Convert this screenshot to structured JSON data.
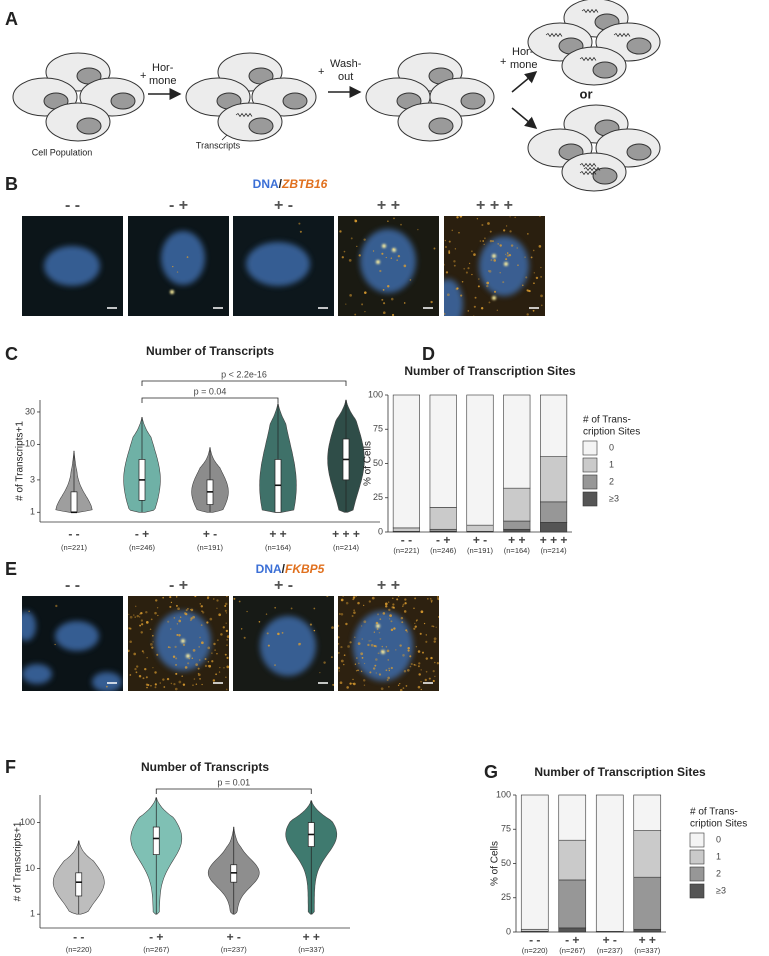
{
  "panel_labels": {
    "a": "A",
    "b": "B",
    "c": "C",
    "d": "D",
    "e": "E",
    "f": "F",
    "g": "G"
  },
  "panel_a": {
    "step1": {
      "sign": "+",
      "line1": "Hor-",
      "line2": "mone"
    },
    "step2": {
      "sign": "+",
      "line1": "Wash-",
      "line2": "out"
    },
    "step3": {
      "sign": "+",
      "line1": "Hor-",
      "line2": "mone"
    },
    "or": "or",
    "cell_population": "Cell Population",
    "transcripts": "Transcripts"
  },
  "panel_b": {
    "title": {
      "dna": "DNA",
      "slash": "/",
      "gene": "ZBTB16"
    },
    "image_labels": [
      "- -",
      "- +",
      "+ -",
      "+ +",
      "+ + +"
    ]
  },
  "panel_e": {
    "title": {
      "dna": "DNA",
      "slash": "/",
      "gene": "FKBP5"
    },
    "image_labels": [
      "- -",
      "- +",
      "+ -",
      "+ +"
    ]
  },
  "chart_data": [
    {
      "type": "violin",
      "title": "Number of Transcripts",
      "ylabel": "# of Transcripts+1",
      "categories": [
        "- -",
        "- +",
        "+ -",
        "+ +",
        "+ + +"
      ],
      "n_labels": [
        "(n=221)",
        "(n=246)",
        "(n=191)",
        "(n=164)",
        "(n=214)"
      ],
      "colors": [
        "#9e9e9e",
        "#6fb1a6",
        "#8c8c8c",
        "#3f7169",
        "#2f4d48"
      ],
      "min": [
        1,
        1,
        1,
        1,
        1
      ],
      "q1": [
        1,
        1.5,
        1.3,
        1,
        3
      ],
      "median": [
        1,
        3,
        2,
        2.5,
        6
      ],
      "q3": [
        2,
        6,
        3,
        6,
        12
      ],
      "max": [
        8,
        25,
        9,
        40,
        45
      ],
      "ylim": [
        0.72,
        45
      ],
      "yticks": [
        1,
        3,
        10,
        30
      ],
      "log_scale": true,
      "brackets": [
        {
          "from": "- +",
          "to": "+ + +",
          "label": "p < 2.2e-16"
        },
        {
          "from": "- +",
          "to": "+ +",
          "label": "p = 0.04"
        }
      ]
    },
    {
      "type": "stacked_bar",
      "title": "Number of Transcription Sites",
      "ylabel": "% of Cells",
      "categories": [
        "- -",
        "- +",
        "+ -",
        "+ +",
        "+ + +"
      ],
      "n_labels": [
        "(n=221)",
        "(n=246)",
        "(n=191)",
        "(n=164)",
        "(n=214)"
      ],
      "legend_title": [
        "# of Trans-",
        "cription Sites"
      ],
      "series": [
        {
          "name": "0",
          "color": "#f4f4f4",
          "values": [
            97,
            82,
            95,
            68,
            45
          ]
        },
        {
          "name": "1",
          "color": "#cacaca",
          "values": [
            2.5,
            16,
            4.5,
            24,
            33
          ]
        },
        {
          "name": "2",
          "color": "#979797",
          "values": [
            0.5,
            1.5,
            0.5,
            6,
            15
          ]
        },
        {
          "name": "≥3",
          "color": "#555555",
          "values": [
            0,
            0.5,
            0,
            2,
            7
          ]
        }
      ],
      "ylim": [
        0,
        100
      ],
      "yticks": [
        0,
        25,
        50,
        75,
        100
      ]
    },
    {
      "type": "violin",
      "title": "Number of Transcripts",
      "ylabel": "# of Transcripts+1",
      "categories": [
        "- -",
        "- +",
        "+ -",
        "+ +"
      ],
      "n_labels": [
        "(n=220)",
        "(n=267)",
        "(n=237)",
        "(n=337)"
      ],
      "colors": [
        "#bdbdbd",
        "#7fc0b4",
        "#8e8e8e",
        "#3f7a6f"
      ],
      "min": [
        1,
        1,
        1,
        1
      ],
      "q1": [
        2.5,
        20,
        5,
        30
      ],
      "median": [
        5,
        45,
        8,
        55
      ],
      "q3": [
        8,
        80,
        12,
        100
      ],
      "max": [
        40,
        350,
        80,
        300
      ],
      "ylim": [
        0.5,
        400
      ],
      "yticks": [
        1,
        10,
        100
      ],
      "log_scale": true,
      "brackets": [
        {
          "from": "- +",
          "to": "+ +",
          "label": "p = 0.01"
        }
      ]
    },
    {
      "type": "stacked_bar",
      "title": "Number of Transcription Sites",
      "ylabel": "% of Cells",
      "categories": [
        "- -",
        "- +",
        "+ -",
        "+ +"
      ],
      "n_labels": [
        "(n=220)",
        "(n=267)",
        "(n=237)",
        "(n=337)"
      ],
      "legend_title": [
        "# of Trans-",
        "cription Sites"
      ],
      "series": [
        {
          "name": "0",
          "color": "#f4f4f4",
          "values": [
            98,
            33,
            99.5,
            26
          ]
        },
        {
          "name": "1",
          "color": "#cacaca",
          "values": [
            1.5,
            29,
            0.5,
            34
          ]
        },
        {
          "name": "2",
          "color": "#979797",
          "values": [
            0.5,
            35,
            0,
            38
          ]
        },
        {
          "name": "≥3",
          "color": "#555555",
          "values": [
            0,
            3,
            0,
            2
          ]
        }
      ],
      "ylim": [
        0,
        100
      ],
      "yticks": [
        0,
        25,
        50,
        75,
        100
      ]
    }
  ]
}
